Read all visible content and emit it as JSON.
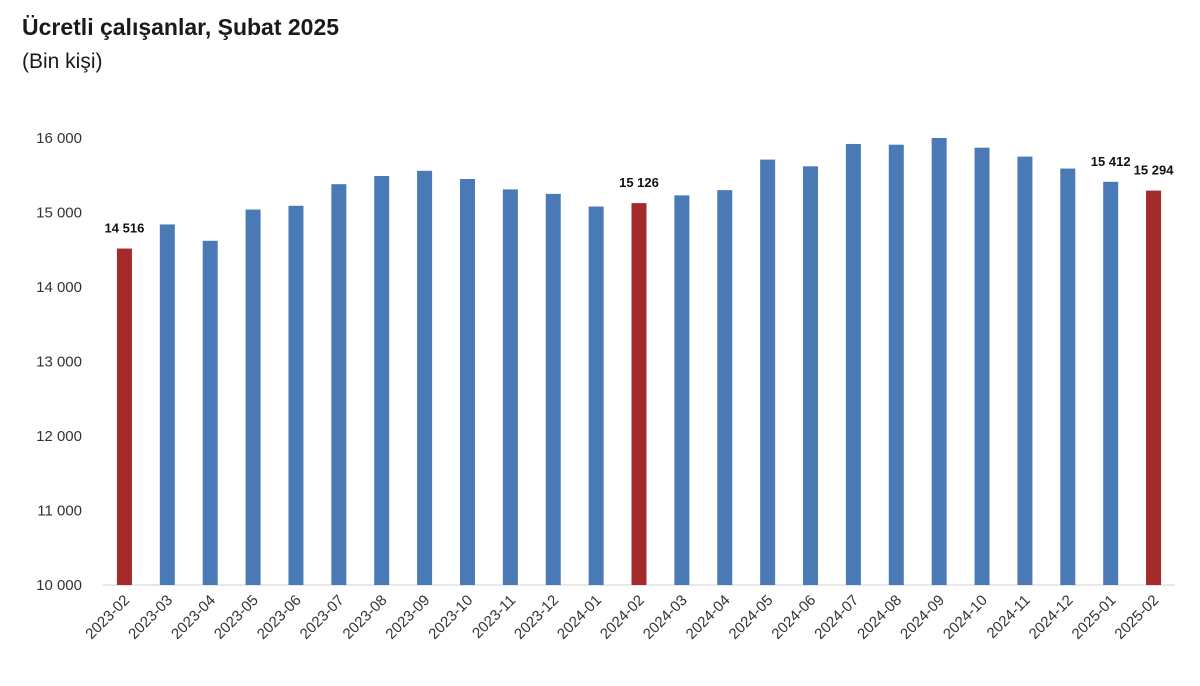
{
  "chart_data": {
    "type": "bar",
    "title": "Ücretli çalışanlar, Şubat 2025",
    "subtitle": "(Bin kişi)",
    "xlabel": "",
    "ylabel": "",
    "ylim": [
      10000,
      16000
    ],
    "yticks": [
      "10 000",
      "11 000",
      "12 000",
      "13 000",
      "14 000",
      "15 000",
      "16 000"
    ],
    "ytick_values": [
      10000,
      11000,
      12000,
      13000,
      14000,
      15000,
      16000
    ],
    "grid": false,
    "legend": "none",
    "colors": {
      "default": "#4a7ab5",
      "highlight": "#a52a2a"
    },
    "categories": [
      "2023-02",
      "2023-03",
      "2023-04",
      "2023-05",
      "2023-06",
      "2023-07",
      "2023-08",
      "2023-09",
      "2023-10",
      "2023-11",
      "2023-12",
      "2024-01",
      "2024-02",
      "2024-03",
      "2024-04",
      "2024-05",
      "2024-06",
      "2024-07",
      "2024-08",
      "2024-09",
      "2024-10",
      "2024-11",
      "2024-12",
      "2025-01",
      "2025-02"
    ],
    "values": [
      14516,
      14840,
      14620,
      15040,
      15090,
      15380,
      15490,
      15560,
      15450,
      15310,
      15250,
      15080,
      15126,
      15230,
      15300,
      15710,
      15620,
      15920,
      15910,
      16000,
      15870,
      15750,
      15590,
      15412,
      15294
    ],
    "highlighted": [
      0,
      12,
      24
    ],
    "data_labels": [
      {
        "index": 0,
        "text": "14 516"
      },
      {
        "index": 12,
        "text": "15 126"
      },
      {
        "index": 23,
        "text": "15 412"
      },
      {
        "index": 24,
        "text": "15 294"
      }
    ]
  }
}
